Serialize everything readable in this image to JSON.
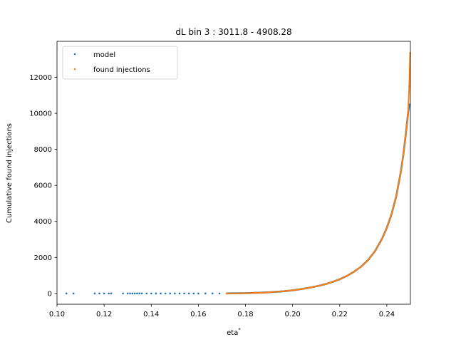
{
  "chart_data": {
    "type": "scatter",
    "title": "dL bin 3 : 3011.8 - 4908.28",
    "xlabel": "eta",
    "xlabel_superscript": "*",
    "ylabel": "Cumulative found injections",
    "xlim": [
      0.1,
      0.25
    ],
    "ylim": [
      0,
      13400
    ],
    "x_ticks": [
      0.1,
      0.12,
      0.14,
      0.16,
      0.18,
      0.2,
      0.22,
      0.24
    ],
    "x_tick_labels": [
      "0.10",
      "0.12",
      "0.14",
      "0.16",
      "0.18",
      "0.20",
      "0.22",
      "0.24"
    ],
    "y_ticks": [
      0,
      2000,
      4000,
      6000,
      8000,
      10000,
      12000
    ],
    "y_tick_labels": [
      "0",
      "2000",
      "4000",
      "6000",
      "8000",
      "10000",
      "12000"
    ],
    "grid": false,
    "legend_position": "top-left",
    "series": [
      {
        "name": "model",
        "color": "#1f77b4",
        "points": [
          [
            0.104,
            0
          ],
          [
            0.107,
            0
          ],
          [
            0.116,
            0
          ],
          [
            0.118,
            0
          ],
          [
            0.12,
            0
          ],
          [
            0.122,
            0
          ],
          [
            0.123,
            0
          ],
          [
            0.128,
            0
          ],
          [
            0.13,
            0
          ],
          [
            0.131,
            0
          ],
          [
            0.132,
            0
          ],
          [
            0.133,
            0
          ],
          [
            0.134,
            0
          ],
          [
            0.135,
            0
          ],
          [
            0.136,
            0
          ],
          [
            0.138,
            0
          ],
          [
            0.14,
            0
          ],
          [
            0.142,
            0
          ],
          [
            0.144,
            0
          ],
          [
            0.146,
            0
          ],
          [
            0.148,
            0
          ],
          [
            0.15,
            0
          ],
          [
            0.152,
            0
          ],
          [
            0.154,
            0
          ],
          [
            0.156,
            0
          ],
          [
            0.158,
            0
          ],
          [
            0.16,
            0
          ],
          [
            0.163,
            0
          ],
          [
            0.166,
            0
          ],
          [
            0.169,
            0
          ],
          [
            0.172,
            2
          ],
          [
            0.175,
            5
          ],
          [
            0.178,
            10
          ],
          [
            0.181,
            18
          ],
          [
            0.184,
            30
          ],
          [
            0.187,
            45
          ],
          [
            0.19,
            65
          ],
          [
            0.193,
            90
          ],
          [
            0.196,
            120
          ],
          [
            0.199,
            160
          ],
          [
            0.202,
            210
          ],
          [
            0.205,
            270
          ],
          [
            0.208,
            340
          ],
          [
            0.211,
            420
          ],
          [
            0.214,
            520
          ],
          [
            0.217,
            640
          ],
          [
            0.22,
            790
          ],
          [
            0.223,
            970
          ],
          [
            0.226,
            1200
          ],
          [
            0.229,
            1480
          ],
          [
            0.232,
            1850
          ],
          [
            0.235,
            2350
          ],
          [
            0.238,
            3050
          ],
          [
            0.24,
            3650
          ],
          [
            0.242,
            4400
          ],
          [
            0.244,
            5400
          ],
          [
            0.246,
            6800
          ],
          [
            0.247,
            7700
          ],
          [
            0.248,
            8800
          ],
          [
            0.249,
            10000
          ],
          [
            0.2495,
            10500
          ]
        ]
      },
      {
        "name": "found injections",
        "color": "#ff7f0e",
        "points": [
          [
            0.172,
            2
          ],
          [
            0.175,
            5
          ],
          [
            0.178,
            10
          ],
          [
            0.181,
            18
          ],
          [
            0.184,
            30
          ],
          [
            0.187,
            45
          ],
          [
            0.19,
            65
          ],
          [
            0.193,
            90
          ],
          [
            0.196,
            120
          ],
          [
            0.199,
            160
          ],
          [
            0.202,
            210
          ],
          [
            0.205,
            270
          ],
          [
            0.208,
            340
          ],
          [
            0.211,
            420
          ],
          [
            0.214,
            520
          ],
          [
            0.217,
            640
          ],
          [
            0.22,
            790
          ],
          [
            0.223,
            970
          ],
          [
            0.226,
            1200
          ],
          [
            0.229,
            1480
          ],
          [
            0.232,
            1850
          ],
          [
            0.235,
            2350
          ],
          [
            0.238,
            3050
          ],
          [
            0.24,
            3650
          ],
          [
            0.242,
            4400
          ],
          [
            0.244,
            5400
          ],
          [
            0.246,
            6800
          ],
          [
            0.247,
            7700
          ],
          [
            0.248,
            8800
          ],
          [
            0.249,
            10000
          ],
          [
            0.2495,
            11500
          ],
          [
            0.2497,
            12400
          ],
          [
            0.2499,
            13350
          ]
        ]
      }
    ]
  }
}
